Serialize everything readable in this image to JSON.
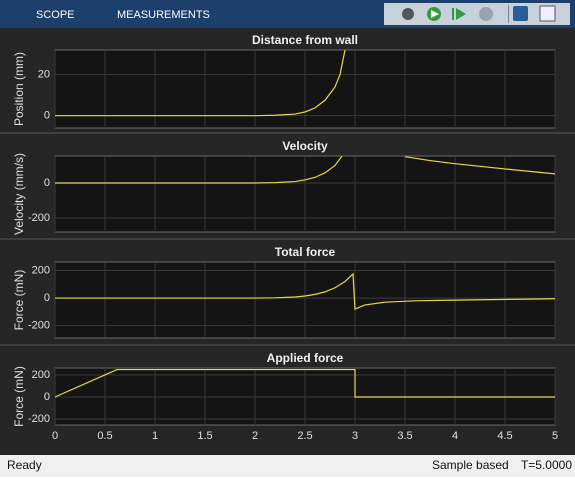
{
  "toolbar": {
    "tabs": [
      "SCOPE",
      "MEASUREMENTS"
    ]
  },
  "status": {
    "state": "Ready",
    "mode": "Sample based",
    "time": "T=5.0000"
  },
  "chart_data": [
    {
      "type": "line",
      "title": "Distance from wall",
      "y_label": "Position (mm)",
      "color": "#e8d84c",
      "grid": true,
      "show_xtick_labels": false,
      "xlim": [
        0,
        5
      ],
      "xticks": [
        0,
        0.5,
        1,
        1.5,
        2,
        2.5,
        3,
        3.5,
        4,
        4.5,
        5
      ],
      "ylim": [
        -6,
        32
      ],
      "yticks": [
        0,
        20
      ],
      "x": [
        0,
        2,
        2.2,
        2.4,
        2.5,
        2.6,
        2.7,
        2.8,
        2.85,
        2.9
      ],
      "values": [
        0,
        0,
        0.2,
        0.8,
        1.8,
        3.8,
        7.5,
        14,
        20,
        32
      ]
    },
    {
      "type": "line",
      "title": "Velocity",
      "y_label": "Velocity (mm/s)",
      "color": "#e8d84c",
      "grid": true,
      "show_xtick_labels": false,
      "xlim": [
        0,
        5
      ],
      "xticks": [
        0,
        0.5,
        1,
        1.5,
        2,
        2.5,
        3,
        3.5,
        4,
        4.5,
        5
      ],
      "ylim": [
        -280,
        154
      ],
      "yticks": [
        -200,
        0
      ],
      "x": [
        0,
        2,
        2.2,
        2.4,
        2.5,
        2.6,
        2.7,
        2.8,
        2.87,
        3.2,
        3.5,
        3.75,
        4,
        4.5,
        5
      ],
      "values": [
        0,
        0,
        2,
        8,
        18,
        32,
        58,
        100,
        154,
        null,
        150,
        128,
        110,
        80,
        52
      ]
    },
    {
      "type": "line",
      "title": "Total force",
      "y_label": "Force (mN)",
      "color": "#e8d84c",
      "grid": true,
      "show_xtick_labels": false,
      "xlim": [
        0,
        5
      ],
      "xticks": [
        0,
        0.5,
        1,
        1.5,
        2,
        2.5,
        3,
        3.5,
        4,
        4.5,
        5
      ],
      "ylim": [
        -290,
        262
      ],
      "yticks": [
        -200,
        0,
        200
      ],
      "x": [
        0,
        2,
        2.2,
        2.4,
        2.5,
        2.6,
        2.7,
        2.8,
        2.9,
        2.98,
        3.0,
        3.1,
        3.3,
        3.6,
        4,
        5
      ],
      "values": [
        0,
        0,
        2,
        8,
        15,
        27,
        45,
        75,
        120,
        175,
        -80,
        -50,
        -30,
        -20,
        -15,
        -5
      ]
    },
    {
      "type": "line",
      "title": "Applied force",
      "y_label": "Force (mN)",
      "color": "#e8d84c",
      "grid": true,
      "show_xtick_labels": true,
      "xlim": [
        0,
        5
      ],
      "xticks": [
        0,
        0.5,
        1,
        1.5,
        2,
        2.5,
        3,
        3.5,
        4,
        4.5,
        5
      ],
      "ylim": [
        -255,
        264
      ],
      "yticks": [
        -200,
        0,
        200
      ],
      "x": [
        0,
        0.62,
        3.0,
        3.0,
        5
      ],
      "values": [
        0,
        250,
        250,
        0,
        0
      ]
    }
  ]
}
